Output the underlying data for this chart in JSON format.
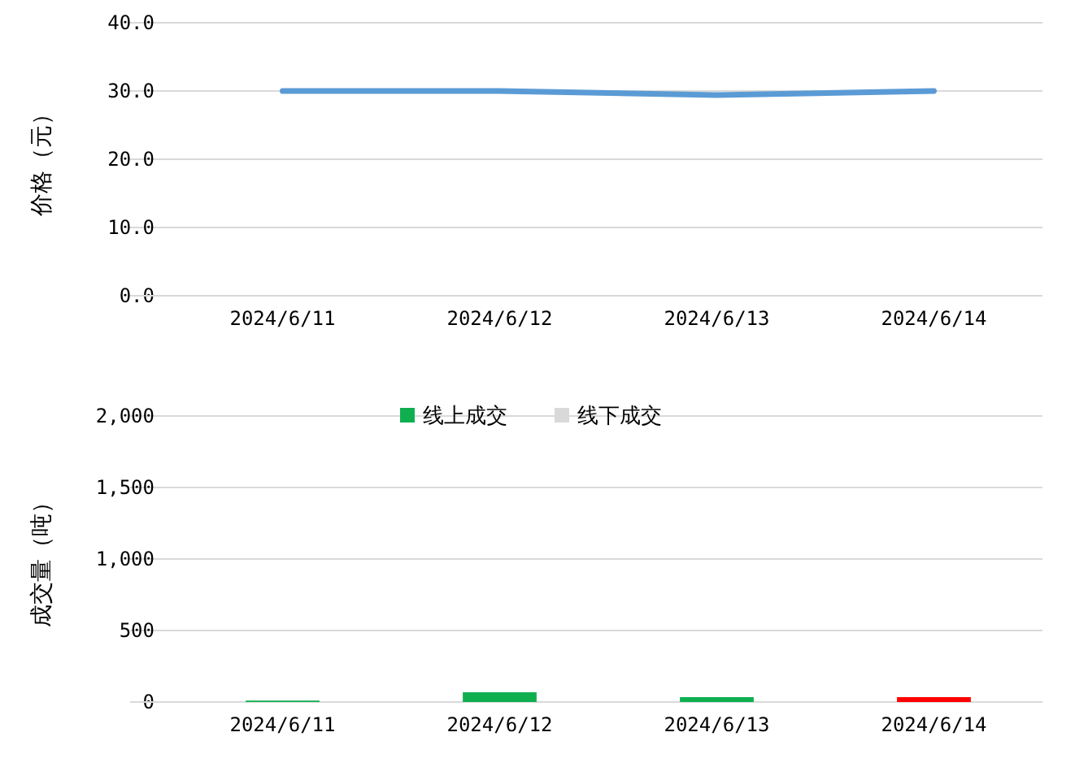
{
  "chart_data": [
    {
      "type": "line",
      "ylabel": "价格（元）",
      "categories": [
        "2024/6/11",
        "2024/6/12",
        "2024/6/13",
        "2024/6/14"
      ],
      "series": [
        {
          "color": "#5b9bd5",
          "values": [
            30.0,
            30.0,
            29.4,
            30.0
          ]
        }
      ],
      "ylim": [
        0,
        40
      ],
      "yticks": [
        {
          "value": 0,
          "label": "0.0"
        },
        {
          "value": 10,
          "label": "10.0"
        },
        {
          "value": 20,
          "label": "20.0"
        },
        {
          "value": 30,
          "label": "30.0"
        },
        {
          "value": 40,
          "label": "40.0"
        }
      ],
      "grid": "y",
      "legend": false
    },
    {
      "type": "bar",
      "ylabel": "成交量（吨）",
      "categories": [
        "2024/6/11",
        "2024/6/12",
        "2024/6/13",
        "2024/6/14"
      ],
      "stacked": true,
      "series": [
        {
          "name": "线上成交",
          "color": "#0faf50",
          "colors": [
            "#0faf50",
            "#0faf50",
            "#0faf50",
            "#ff0000"
          ],
          "values": [
            10,
            68,
            34,
            34
          ]
        },
        {
          "name": "线下成交",
          "color": "#d9d9d9",
          "values": [
            0,
            0,
            0,
            0
          ]
        }
      ],
      "ylim": [
        0,
        2000
      ],
      "yticks": [
        0,
        500,
        {
          "value": 1000,
          "label": "1,000"
        },
        {
          "value": 1500,
          "label": "1,500"
        },
        {
          "value": 2000,
          "label": "2,000"
        }
      ],
      "grid": "y",
      "legend": "top"
    }
  ]
}
